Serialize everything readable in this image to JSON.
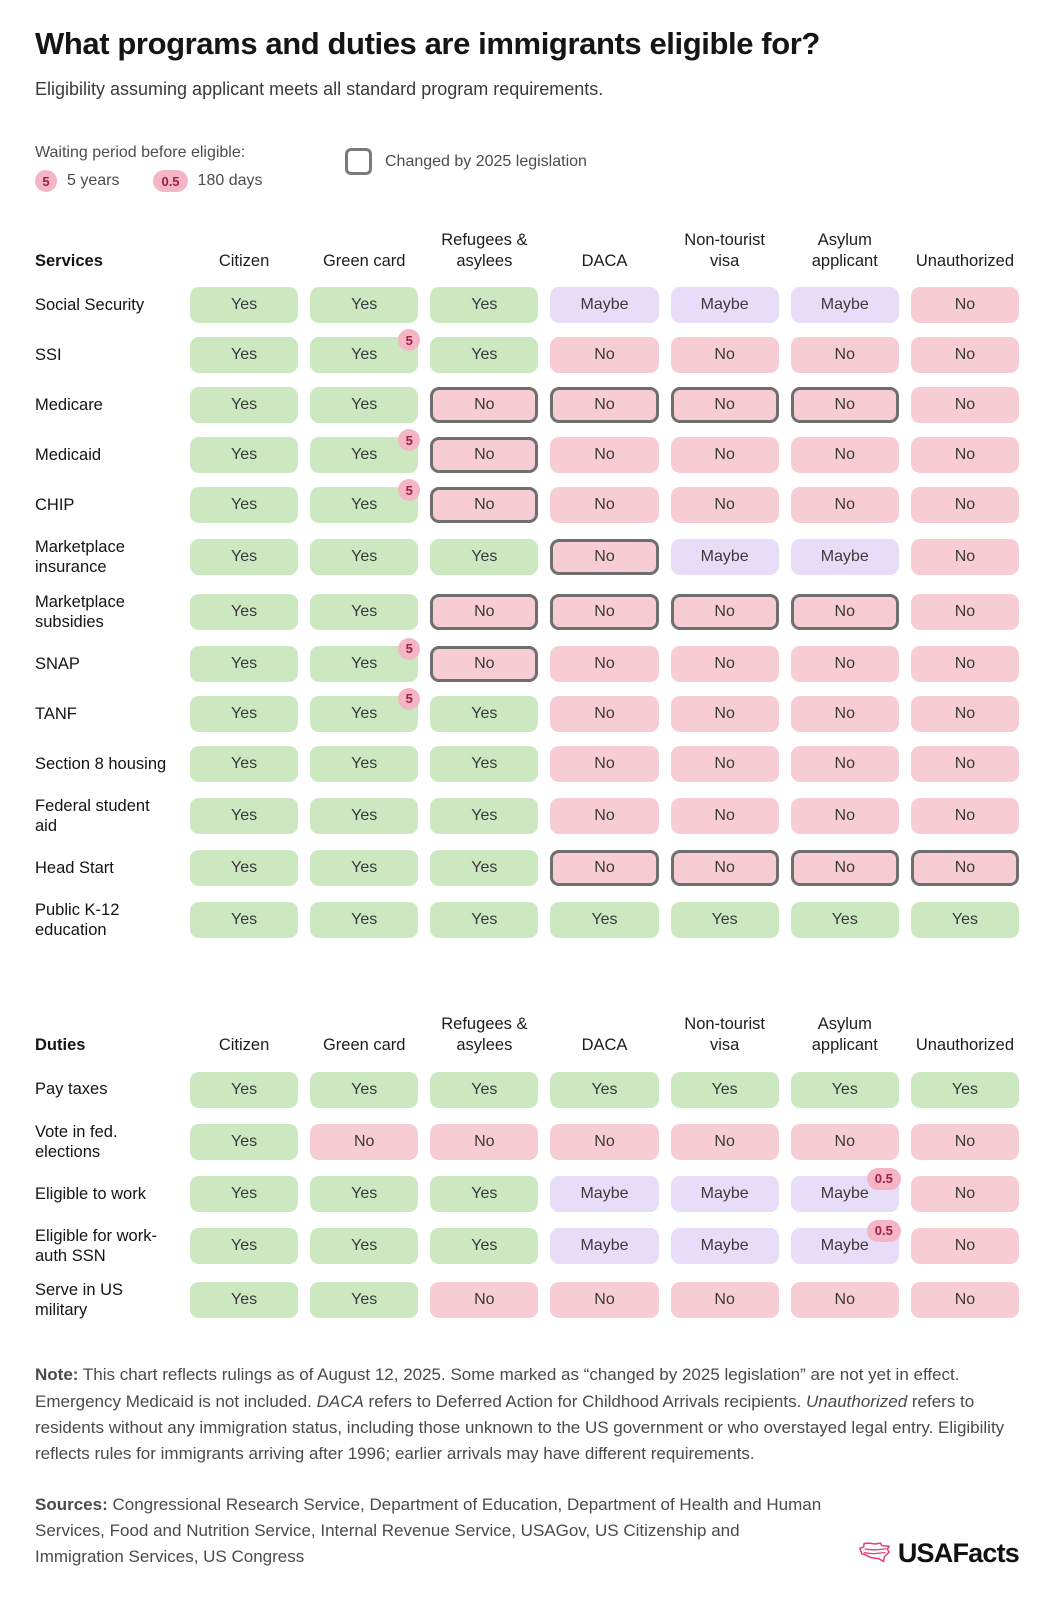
{
  "page": {
    "title": "What programs and duties are immigrants eligible for?",
    "subtitle": "Eligibility assuming applicant meets all standard program requirements."
  },
  "legend": {
    "waiting_title": "Waiting period before eligible:",
    "badge_5": "5",
    "badge_5_label": "5 years",
    "badge_05": "0.5",
    "badge_05_label": "180 days",
    "changed_label": "Changed by 2025 legislation"
  },
  "colors": {
    "yes_bg": "#cbe8c1",
    "no_bg": "#f8ccd4",
    "maybe_bg": "#e8ddf8",
    "badge_bg": "#f4b6c5",
    "badge_text": "#9e2044",
    "changed_border": "#6f6f6f",
    "logo_pink": "#e0426f"
  },
  "chart_data": [
    {
      "type": "table",
      "section": "Services",
      "columns": [
        "Citizen",
        "Green card",
        "Refugees & asylees",
        "DACA",
        "Non-tourist visa",
        "Asylum applicant",
        "Unauthorized"
      ],
      "rows": [
        {
          "label": "Social Security",
          "cells": [
            {
              "v": "Yes"
            },
            {
              "v": "Yes"
            },
            {
              "v": "Yes"
            },
            {
              "v": "Maybe"
            },
            {
              "v": "Maybe"
            },
            {
              "v": "Maybe"
            },
            {
              "v": "No"
            }
          ]
        },
        {
          "label": "SSI",
          "cells": [
            {
              "v": "Yes"
            },
            {
              "v": "Yes",
              "badge": "5"
            },
            {
              "v": "Yes"
            },
            {
              "v": "No"
            },
            {
              "v": "No"
            },
            {
              "v": "No"
            },
            {
              "v": "No"
            }
          ]
        },
        {
          "label": "Medicare",
          "cells": [
            {
              "v": "Yes"
            },
            {
              "v": "Yes"
            },
            {
              "v": "No",
              "changed": true
            },
            {
              "v": "No",
              "changed": true
            },
            {
              "v": "No",
              "changed": true
            },
            {
              "v": "No",
              "changed": true
            },
            {
              "v": "No"
            }
          ]
        },
        {
          "label": "Medicaid",
          "cells": [
            {
              "v": "Yes"
            },
            {
              "v": "Yes",
              "badge": "5"
            },
            {
              "v": "No",
              "changed": true
            },
            {
              "v": "No"
            },
            {
              "v": "No"
            },
            {
              "v": "No"
            },
            {
              "v": "No"
            }
          ]
        },
        {
          "label": "CHIP",
          "cells": [
            {
              "v": "Yes"
            },
            {
              "v": "Yes",
              "badge": "5"
            },
            {
              "v": "No",
              "changed": true
            },
            {
              "v": "No"
            },
            {
              "v": "No"
            },
            {
              "v": "No"
            },
            {
              "v": "No"
            }
          ]
        },
        {
          "label": "Marketplace insurance",
          "cells": [
            {
              "v": "Yes"
            },
            {
              "v": "Yes"
            },
            {
              "v": "Yes"
            },
            {
              "v": "No",
              "changed": true
            },
            {
              "v": "Maybe"
            },
            {
              "v": "Maybe"
            },
            {
              "v": "No"
            }
          ]
        },
        {
          "label": "Marketplace subsidies",
          "cells": [
            {
              "v": "Yes"
            },
            {
              "v": "Yes"
            },
            {
              "v": "No",
              "changed": true
            },
            {
              "v": "No",
              "changed": true
            },
            {
              "v": "No",
              "changed": true
            },
            {
              "v": "No",
              "changed": true
            },
            {
              "v": "No"
            }
          ]
        },
        {
          "label": "SNAP",
          "cells": [
            {
              "v": "Yes"
            },
            {
              "v": "Yes",
              "badge": "5"
            },
            {
              "v": "No",
              "changed": true
            },
            {
              "v": "No"
            },
            {
              "v": "No"
            },
            {
              "v": "No"
            },
            {
              "v": "No"
            }
          ]
        },
        {
          "label": "TANF",
          "cells": [
            {
              "v": "Yes"
            },
            {
              "v": "Yes",
              "badge": "5"
            },
            {
              "v": "Yes"
            },
            {
              "v": "No"
            },
            {
              "v": "No"
            },
            {
              "v": "No"
            },
            {
              "v": "No"
            }
          ]
        },
        {
          "label": "Section 8 housing",
          "cells": [
            {
              "v": "Yes"
            },
            {
              "v": "Yes"
            },
            {
              "v": "Yes"
            },
            {
              "v": "No"
            },
            {
              "v": "No"
            },
            {
              "v": "No"
            },
            {
              "v": "No"
            }
          ]
        },
        {
          "label": "Federal student aid",
          "cells": [
            {
              "v": "Yes"
            },
            {
              "v": "Yes"
            },
            {
              "v": "Yes"
            },
            {
              "v": "No"
            },
            {
              "v": "No"
            },
            {
              "v": "No"
            },
            {
              "v": "No"
            }
          ]
        },
        {
          "label": "Head Start",
          "cells": [
            {
              "v": "Yes"
            },
            {
              "v": "Yes"
            },
            {
              "v": "Yes"
            },
            {
              "v": "No",
              "changed": true
            },
            {
              "v": "No",
              "changed": true
            },
            {
              "v": "No",
              "changed": true
            },
            {
              "v": "No",
              "changed": true
            }
          ]
        },
        {
          "label": "Public K-12 education",
          "cells": [
            {
              "v": "Yes"
            },
            {
              "v": "Yes"
            },
            {
              "v": "Yes"
            },
            {
              "v": "Yes"
            },
            {
              "v": "Yes"
            },
            {
              "v": "Yes"
            },
            {
              "v": "Yes"
            }
          ]
        }
      ]
    },
    {
      "type": "table",
      "section": "Duties",
      "columns": [
        "Citizen",
        "Green card",
        "Refugees & asylees",
        "DACA",
        "Non-tourist visa",
        "Asylum applicant",
        "Unauthorized"
      ],
      "rows": [
        {
          "label": "Pay taxes",
          "cells": [
            {
              "v": "Yes"
            },
            {
              "v": "Yes"
            },
            {
              "v": "Yes"
            },
            {
              "v": "Yes"
            },
            {
              "v": "Yes"
            },
            {
              "v": "Yes"
            },
            {
              "v": "Yes"
            }
          ]
        },
        {
          "label": "Vote in fed. elections",
          "cells": [
            {
              "v": "Yes"
            },
            {
              "v": "No"
            },
            {
              "v": "No"
            },
            {
              "v": "No"
            },
            {
              "v": "No"
            },
            {
              "v": "No"
            },
            {
              "v": "No"
            }
          ]
        },
        {
          "label": "Eligible to work",
          "cells": [
            {
              "v": "Yes"
            },
            {
              "v": "Yes"
            },
            {
              "v": "Yes"
            },
            {
              "v": "Maybe"
            },
            {
              "v": "Maybe"
            },
            {
              "v": "Maybe",
              "badge": "0.5"
            },
            {
              "v": "No"
            }
          ]
        },
        {
          "label": "Eligible for work-auth SSN",
          "cells": [
            {
              "v": "Yes"
            },
            {
              "v": "Yes"
            },
            {
              "v": "Yes"
            },
            {
              "v": "Maybe"
            },
            {
              "v": "Maybe"
            },
            {
              "v": "Maybe",
              "badge": "0.5"
            },
            {
              "v": "No"
            }
          ]
        },
        {
          "label": "Serve in US military",
          "cells": [
            {
              "v": "Yes"
            },
            {
              "v": "Yes"
            },
            {
              "v": "No"
            },
            {
              "v": "No"
            },
            {
              "v": "No"
            },
            {
              "v": "No"
            },
            {
              "v": "No"
            }
          ]
        }
      ]
    }
  ],
  "note": {
    "parts": [
      {
        "t": "Note:",
        "b": true
      },
      {
        "t": " This chart reflects rulings as of August 12, 2025. Some marked as “changed by 2025 legislation” are not yet in effect. Emergency Medicaid is not included. "
      },
      {
        "t": "DACA",
        "i": true
      },
      {
        "t": " refers to Deferred Action for Childhood Arrivals recipients. "
      },
      {
        "t": "Unauthorized",
        "i": true
      },
      {
        "t": " refers to residents without any immigration status, including those unknown to the US government or who overstayed legal entry. Eligibility reflects rules for immigrants arriving after 1996; earlier arrivals may have different requirements."
      }
    ]
  },
  "sources": {
    "parts": [
      {
        "t": "Sources:",
        "b": true
      },
      {
        "t": " Congressional Research Service, Department of Education, Department of Health and Human Services, Food and Nutrition Service, Internal Revenue Service, USAGov, US Citizenship and Immigration Services, US Congress"
      }
    ]
  },
  "logo": {
    "text": "USAFacts"
  }
}
